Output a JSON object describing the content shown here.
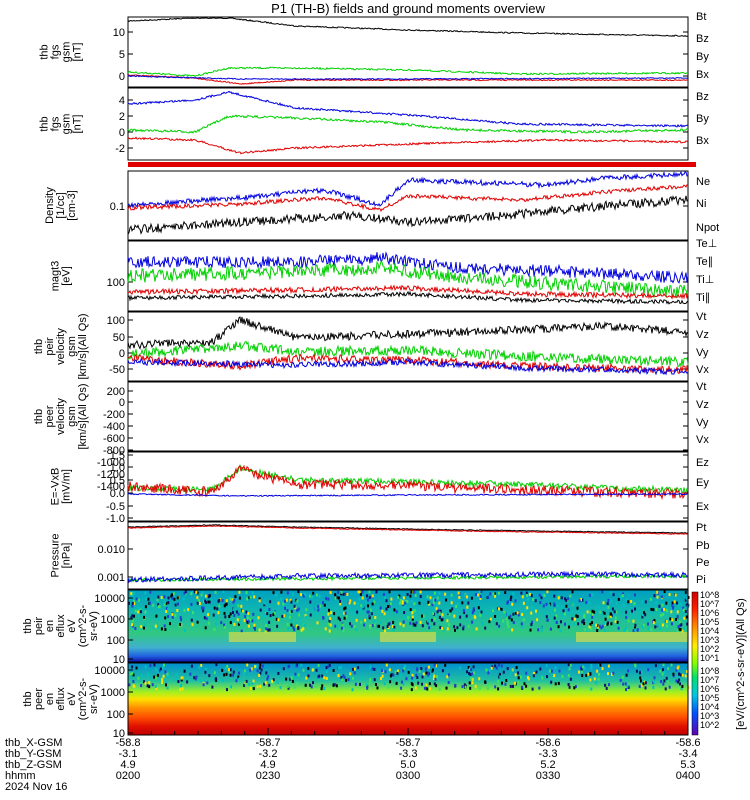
{
  "title": "P1 (TH-B) fields and ground moments overview",
  "colors": {
    "black": "#000000",
    "red": "#e00000",
    "green": "#00d000",
    "blue": "#0000dd"
  },
  "chart_data": [
    {
      "type": "line",
      "panel": "fgs-gsm-with-bt",
      "ylabel": [
        "thb",
        "fgs",
        "gsm",
        "[nT]"
      ],
      "yticks": [
        "10",
        "5",
        "0"
      ],
      "ylim": [
        -1,
        14
      ],
      "series": [
        {
          "name": "Bt",
          "color": "black"
        },
        {
          "name": "Bz",
          "color": "red"
        },
        {
          "name": "By",
          "color": "green"
        },
        {
          "name": "Bx",
          "color": "blue"
        }
      ]
    },
    {
      "type": "line",
      "panel": "fgs-gsm",
      "ylabel": [
        "thb",
        "fgs",
        "gsm",
        "[nT]"
      ],
      "yticks": [
        "4",
        "2",
        "0",
        "-2"
      ],
      "ylim": [
        -3.5,
        5
      ],
      "series": [
        {
          "name": "Bz",
          "color": "red"
        },
        {
          "name": "By",
          "color": "green"
        },
        {
          "name": "Bx",
          "color": "blue"
        }
      ]
    },
    {
      "type": "line",
      "panel": "density",
      "ylabel": [
        "Density",
        "[1/cc]",
        "[cm-3]"
      ],
      "yticks": [
        "0.1"
      ],
      "ylog": true,
      "series": [
        {
          "name": "Ne",
          "color": "red"
        },
        {
          "name": "Ni",
          "color": "black"
        },
        {
          "name": "Npot",
          "color": "blue"
        }
      ]
    },
    {
      "type": "line",
      "panel": "temperature",
      "ylabel": [
        "magt3",
        "[eV]"
      ],
      "yticks": [
        "100"
      ],
      "ylog": true,
      "series": [
        {
          "name": "Te⊥",
          "color": "red"
        },
        {
          "name": "Te∥",
          "color": "black"
        },
        {
          "name": "Ti⊥",
          "color": "green"
        },
        {
          "name": "Ti∥",
          "color": "green"
        }
      ]
    },
    {
      "type": "line",
      "panel": "peir-velocity",
      "ylabel": [
        "thb",
        "peir",
        "velocity",
        "gsm",
        "[km/s](All Qs)"
      ],
      "yticks": [
        "100",
        "50",
        "0",
        "-50"
      ],
      "ylim": [
        -75,
        125
      ],
      "series": [
        {
          "name": "Vt",
          "color": "black"
        },
        {
          "name": "Vz",
          "color": "red"
        },
        {
          "name": "Vy",
          "color": "green"
        },
        {
          "name": "Vx",
          "color": "blue"
        }
      ]
    },
    {
      "type": "line",
      "panel": "peer-velocity",
      "ylabel": [
        "thb",
        "peer",
        "velocity",
        "gsm",
        "[km/s](All Qs)"
      ],
      "yticks": [
        "200",
        "0",
        "-200",
        "-400",
        "-600",
        "-800",
        "-1000",
        "-1200",
        "-1400"
      ],
      "ylim": [
        -1500,
        250
      ],
      "series": [
        {
          "name": "Vt",
          "color": "black"
        },
        {
          "name": "Vz",
          "color": "red"
        },
        {
          "name": "Vy",
          "color": "green"
        },
        {
          "name": "Vx",
          "color": "blue"
        }
      ]
    },
    {
      "type": "line",
      "panel": "efield",
      "ylabel": [
        "E=-VxB",
        "[mV/m]"
      ],
      "yticks": [
        "1.5",
        "1.0",
        "0.5",
        "0.0",
        "-0.5",
        "-1.0"
      ],
      "ylim": [
        -1.1,
        1.5
      ],
      "series": [
        {
          "name": "Ez",
          "color": "red"
        },
        {
          "name": "Ey",
          "color": "green"
        },
        {
          "name": "Ex",
          "color": "blue"
        }
      ]
    },
    {
      "type": "line",
      "panel": "pressure",
      "ylabel": [
        "Pressure",
        "[nPa]"
      ],
      "yticks": [
        "0.010",
        "0.001"
      ],
      "ylog": true,
      "series": [
        {
          "name": "Pt",
          "color": "black"
        },
        {
          "name": "Pb",
          "color": "red"
        },
        {
          "name": "Pe",
          "color": "green"
        },
        {
          "name": "Pi",
          "color": "blue"
        }
      ]
    },
    {
      "type": "heatmap",
      "panel": "peir-en-eflux",
      "ylabel": [
        "thb",
        "peir",
        "en",
        "eflux",
        "eV",
        "(cm^2-s-",
        "sr-eV)"
      ],
      "yticks": [
        "10000",
        "1000",
        "100",
        "10"
      ],
      "ylog": true
    },
    {
      "type": "heatmap",
      "panel": "peer-en-eflux",
      "ylabel": [
        "thb",
        "peer",
        "en",
        "eflux",
        "eV",
        "(cm^2-s-",
        "sr-eV)"
      ],
      "yticks": [
        "10000",
        "1000",
        "100",
        "10"
      ],
      "ylog": true
    }
  ],
  "colorbar": {
    "label": "[eV/(cm^2-s-sr-eV)](All Qs)",
    "ticks_top": [
      "10^8",
      "10^7",
      "10^6",
      "10^5",
      "10^4",
      "10^3",
      "10^2",
      "10^1"
    ],
    "ticks_bottom": [
      "10^8",
      "10^7",
      "10^6",
      "10^5",
      "10^4",
      "10^3",
      "10^2"
    ]
  },
  "xaxis": {
    "rows": [
      {
        "label": "thb_X-GSM",
        "values": [
          "-58.8",
          "-58.7",
          "-58.7",
          "-58.6",
          "-58.6"
        ]
      },
      {
        "label": "thb_Y-GSM",
        "values": [
          "-3.1",
          "-3.2",
          "-3.3",
          "-3.3",
          "-3.4"
        ]
      },
      {
        "label": "thb_Z-GSM",
        "values": [
          "4.9",
          "4.9",
          "5.0",
          "5.2",
          "5.3"
        ]
      },
      {
        "label": "hhmm",
        "values": [
          "0200",
          "0230",
          "0300",
          "0330",
          "0400"
        ]
      }
    ],
    "date": "2024 Nov 16"
  }
}
